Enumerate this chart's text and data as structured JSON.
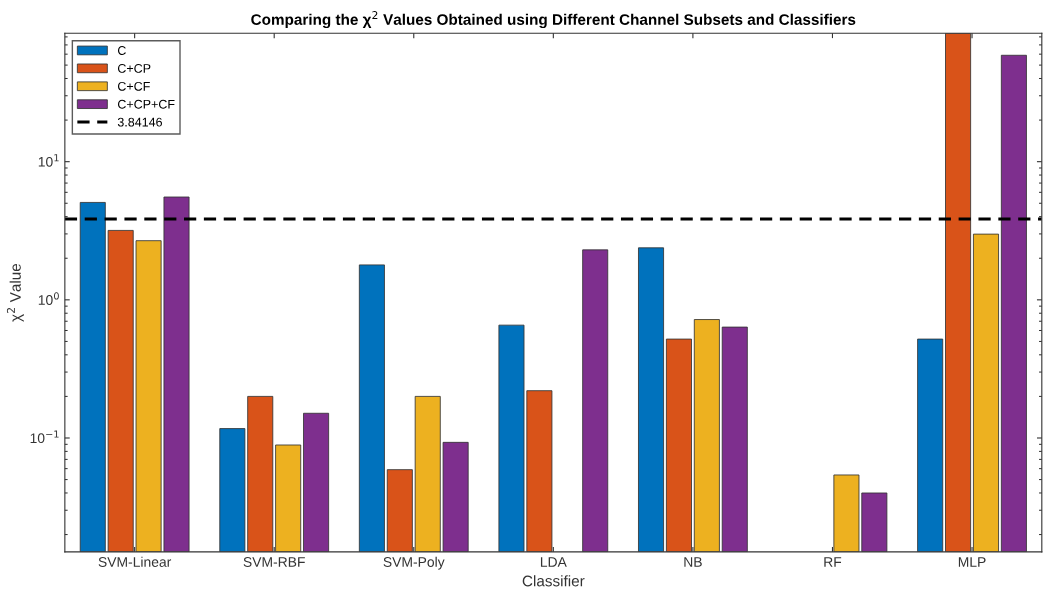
{
  "chart_data": {
    "type": "bar",
    "title": "Comparing the χ$^{2}$ Values Obtained using Different Channel Subsets and Classifiers",
    "xlabel": "Classifier",
    "ylabel": "χ$^{2}$ Value",
    "categories": [
      "SVM-Linear",
      "SVM-RBF",
      "SVM-Poly",
      "LDA",
      "NB",
      "RF",
      "MLP"
    ],
    "series": [
      {
        "name": "C",
        "color": "#0072bd",
        "values": [
          5.07,
          0.117,
          1.79,
          0.656,
          2.38,
          null,
          0.52
        ]
      },
      {
        "name": "C+CP",
        "color": "#d95319",
        "values": [
          3.18,
          0.2,
          0.059,
          0.22,
          0.52,
          null,
          85
        ]
      },
      {
        "name": "C+CF",
        "color": "#edb120",
        "values": [
          2.68,
          0.089,
          0.2,
          null,
          0.72,
          0.054,
          2.99
        ]
      },
      {
        "name": "C+CP+CF",
        "color": "#7e2f8e",
        "values": [
          5.55,
          0.151,
          0.093,
          2.3,
          0.635,
          0.04,
          58.9
        ]
      }
    ],
    "log": "y",
    "ylim": [
      0.015,
      85
    ],
    "yticks": [
      {
        "value": 0.1,
        "label": "10$^{−1}$"
      },
      {
        "value": 1,
        "label": "10$^{0}$"
      },
      {
        "value": 10,
        "label": "10$^{1}$"
      }
    ],
    "ref_lines": [
      {
        "axis": "y",
        "value": 3.84146,
        "label": "3.84146",
        "color": "#000000",
        "line_style": "dashed"
      }
    ],
    "legend": "top left",
    "grid": false
  }
}
